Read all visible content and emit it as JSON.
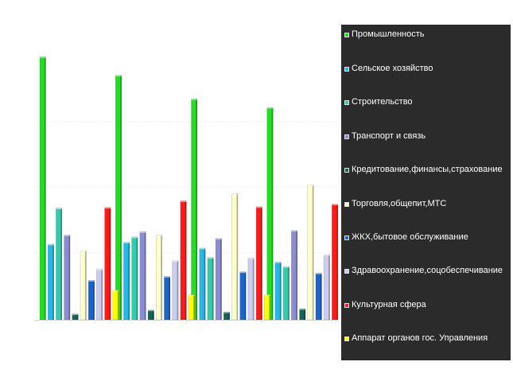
{
  "chart_data": {
    "type": "bar",
    "categories": [
      "",
      "",
      "",
      ""
    ],
    "series": [
      {
        "name": "Промышленность",
        "color": "#22dd22",
        "values": [
          40.0,
          37.2,
          33.6,
          32.3
        ]
      },
      {
        "name": "Сельское хозяйство",
        "color": "#22b8e8",
        "values": [
          11.5,
          11.8,
          10.9,
          8.8
        ]
      },
      {
        "name": "Строительство",
        "color": "#33ccaa",
        "values": [
          17.0,
          12.6,
          9.5,
          8.1
        ]
      },
      {
        "name": "Транспорт и связь",
        "color": "#8c8cd4",
        "values": [
          12.9,
          13.4,
          12.4,
          13.6
        ]
      },
      {
        "name": "Кредитование,финансы,страхование",
        "color": "#116655",
        "values": [
          0.9,
          1.5,
          1.2,
          1.7
        ]
      },
      {
        "name": "Торговля,общепит,МТС",
        "color": "#ffffcc",
        "values": [
          10.5,
          12.9,
          19.2,
          20.5
        ]
      },
      {
        "name": "ЖКХ,бытовое обслуживание",
        "color": "#1a66cc",
        "values": [
          6.0,
          6.6,
          7.3,
          7.1
        ]
      },
      {
        "name": "Здравоохранение,соцобеспечивание",
        "color": "#ccccf0",
        "values": [
          7.7,
          9.0,
          9.4,
          9.9
        ]
      },
      {
        "name": "Культурная сфера",
        "color": "#ff1a1a",
        "values": [
          17.1,
          18.1,
          17.2,
          17.6
        ]
      },
      {
        "name": "Аппарат органов гос. Управления",
        "color": "#ffff00",
        "values": [
          4.5,
          3.8,
          3.8,
          4.1
        ]
      }
    ],
    "ylim": [
      0,
      45
    ],
    "grid": true,
    "legend_position": "right"
  }
}
